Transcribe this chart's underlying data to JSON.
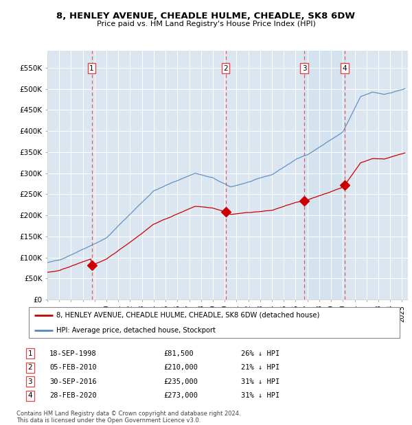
{
  "title": "8, HENLEY AVENUE, CHEADLE HULME, CHEADLE, SK8 6DW",
  "subtitle": "Price paid vs. HM Land Registry's House Price Index (HPI)",
  "plot_bg_color": "#dce6f1",
  "transactions": [
    {
      "num": 1,
      "date": "18-SEP-1998",
      "price": 81500,
      "hpi_note": "26% ↓ HPI",
      "year": 1998.75
    },
    {
      "num": 2,
      "date": "05-FEB-2010",
      "price": 210000,
      "hpi_note": "21% ↓ HPI",
      "year": 2010.08
    },
    {
      "num": 3,
      "date": "30-SEP-2016",
      "price": 235000,
      "hpi_note": "31% ↓ HPI",
      "year": 2016.75
    },
    {
      "num": 4,
      "date": "28-FEB-2020",
      "price": 273000,
      "hpi_note": "31% ↓ HPI",
      "year": 2020.16
    }
  ],
  "legend_label_red": "8, HENLEY AVENUE, CHEADLE HULME, CHEADLE, SK8 6DW (detached house)",
  "legend_label_blue": "HPI: Average price, detached house, Stockport",
  "footer": "Contains HM Land Registry data © Crown copyright and database right 2024.\nThis data is licensed under the Open Government Licence v3.0.",
  "red_color": "#cc0000",
  "blue_color": "#5588bb",
  "highlight_color": "#ddeeff",
  "vline_color": "#dd4444",
  "yticks": [
    0,
    50000,
    100000,
    150000,
    200000,
    250000,
    300000,
    350000,
    400000,
    450000,
    500000,
    550000
  ],
  "ytick_labels": [
    "£0",
    "£50K",
    "£100K",
    "£150K",
    "£200K",
    "£250K",
    "£300K",
    "£350K",
    "£400K",
    "£450K",
    "£500K",
    "£550K"
  ],
  "xlim_start": 1995.0,
  "xlim_end": 2025.5,
  "ylim_top": 590000
}
